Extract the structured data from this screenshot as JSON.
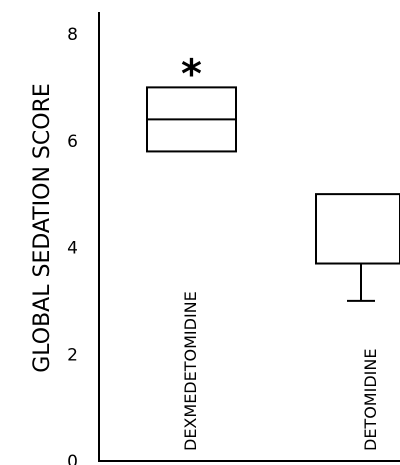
{
  "chart_data": {
    "type": "box",
    "title": "",
    "ylabel": "GLOBAL SEDATION SCORE",
    "xlabel": "",
    "ylim": [
      0,
      8
    ],
    "yticks": [
      "0",
      "2",
      "4",
      "6",
      "8"
    ],
    "grid": false,
    "categories": [
      "DEXMEDETOMIDINE",
      "DETOMIDINE"
    ],
    "boxes": [
      {
        "category": "DEXMEDETOMIDINE",
        "q1": 5.8,
        "median": 6.4,
        "q3": 7.0,
        "whisker_low": null,
        "annotation": "*"
      },
      {
        "category": "DETOMIDINE",
        "q1": 3.7,
        "median": null,
        "q3": 5.0,
        "whisker_low": 3.0,
        "annotation": ""
      }
    ]
  }
}
